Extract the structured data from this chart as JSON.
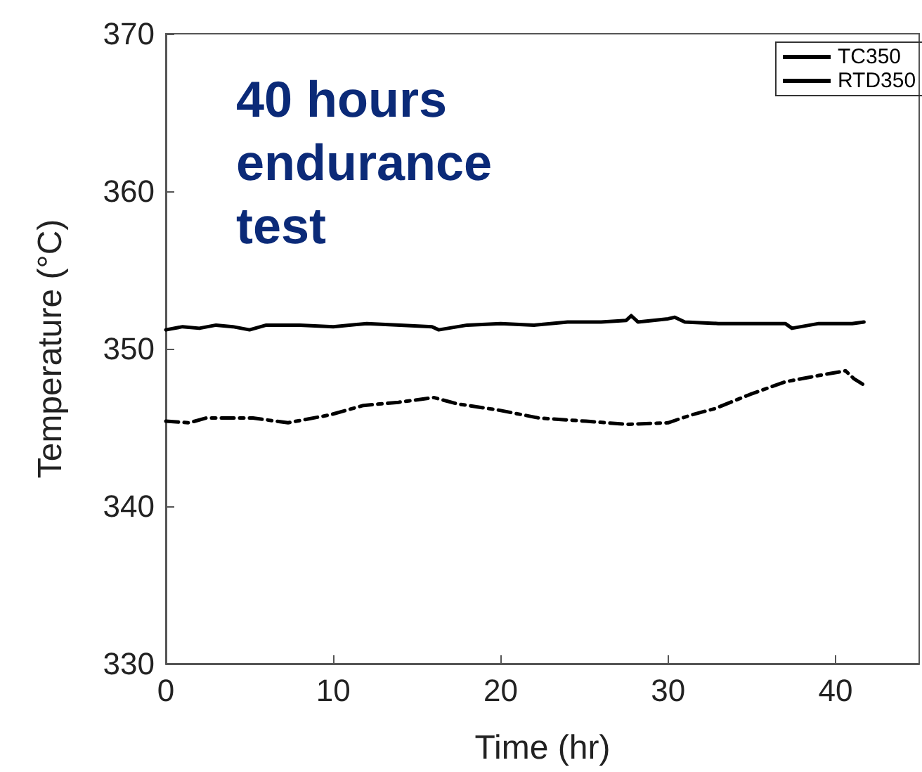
{
  "chart_data": {
    "type": "line",
    "xlabel": "Time (hr)",
    "ylabel": "Temperature (°C)",
    "annotations": [
      "40 hours\nendurance\ntest"
    ],
    "xlim": [
      0,
      45
    ],
    "xticks": [
      0,
      10,
      20,
      30,
      40
    ],
    "ylim": [
      330,
      370
    ],
    "yticks": [
      330,
      340,
      350,
      360,
      370
    ],
    "grid": false,
    "legend": "top right",
    "marker": "none",
    "series": [
      {
        "name": "TC350",
        "color": "#000000",
        "line_style": "dashed",
        "x": [
          0,
          1.4,
          2.4,
          5.2,
          7.3,
          9.8,
          11.8,
          13.9,
          16,
          17.4,
          19.9,
          22.3,
          25.1,
          27.5,
          30,
          31.4,
          32.8,
          34.9,
          37,
          39,
          40.6,
          41.1,
          41.7
        ],
        "values": [
          345.4,
          345.3,
          345.6,
          345.6,
          345.3,
          345.8,
          346.4,
          346.6,
          346.9,
          346.5,
          346.1,
          345.6,
          345.4,
          345.2,
          345.3,
          345.8,
          346.2,
          347.1,
          347.9,
          348.3,
          348.6,
          348.1,
          347.7
        ]
      },
      {
        "name": "RTD350",
        "color": "#000000",
        "line_style": "solid",
        "x": [
          0,
          1,
          2,
          3,
          4,
          5,
          6,
          8,
          10,
          12,
          14,
          15.9,
          16.3,
          18,
          20,
          22,
          24,
          26,
          27.5,
          27.8,
          28.2,
          30,
          30.4,
          31,
          33,
          35,
          37,
          37.4,
          39,
          41,
          41.7
        ],
        "values": [
          351.2,
          351.4,
          351.3,
          351.5,
          351.4,
          351.2,
          351.5,
          351.5,
          351.4,
          351.6,
          351.5,
          351.4,
          351.2,
          351.5,
          351.6,
          351.5,
          351.7,
          351.7,
          351.8,
          352.1,
          351.7,
          351.9,
          352.0,
          351.7,
          351.6,
          351.6,
          351.6,
          351.3,
          351.6,
          351.6,
          351.7
        ]
      }
    ]
  }
}
